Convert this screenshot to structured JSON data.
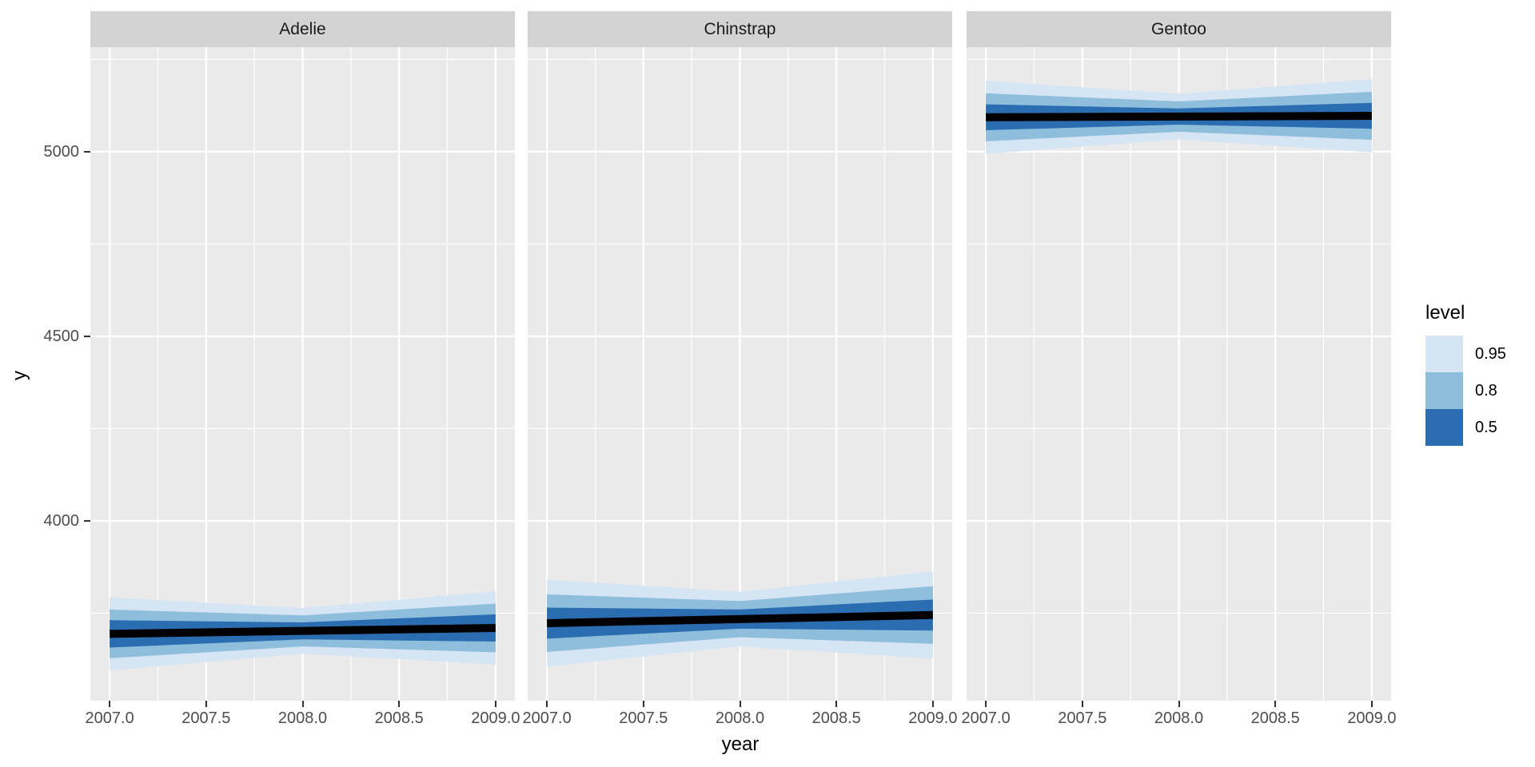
{
  "figure": {
    "background": "#ffffff",
    "panel_bg": "#eaeaea",
    "strip_bg": "#d3d3d3",
    "grid_color": "#ffffff",
    "tick_color": "#333333",
    "tick_label_color": "#4d4d4d",
    "median_color": "#000000"
  },
  "chart_data": {
    "type": "area",
    "subtype": "faceted-fan-chart",
    "title": "",
    "xlabel": "year",
    "ylabel": "y",
    "facets": [
      "Adelie",
      "Chinstrap",
      "Gentoo"
    ],
    "x": [
      2007,
      2008,
      2009
    ],
    "x_ticks": [
      2007.0,
      2007.5,
      2008.0,
      2008.5,
      2009.0
    ],
    "x_tick_labels": [
      "2007.0",
      "2007.5",
      "2008.0",
      "2008.5",
      "2009.0"
    ],
    "x_minor_ticks": [
      2007.25,
      2007.75,
      2008.25,
      2008.75
    ],
    "y_ticks": [
      4000,
      4500,
      5000
    ],
    "y_tick_labels": [
      "4000",
      "4500",
      "5000"
    ],
    "y_minor_ticks": [
      3750,
      4250,
      4750,
      5250
    ],
    "xlim": [
      2006.9,
      2009.1
    ],
    "ylim": [
      3513,
      5283
    ],
    "grid": true,
    "legend": {
      "title": "level",
      "position": "right",
      "entries": [
        {
          "label": "0.95",
          "color": "#d6e5f3"
        },
        {
          "label": "0.8",
          "color": "#8ebedb"
        },
        {
          "label": "0.5",
          "color": "#2a6db1"
        }
      ]
    },
    "series": [
      {
        "facet": "Adelie",
        "median": [
          3694,
          3702,
          3710
        ],
        "bands": [
          {
            "level": "0.95",
            "lower": [
              3595,
              3640,
              3611
            ],
            "upper": [
              3793,
              3764,
              3809
            ]
          },
          {
            "level": "0.8",
            "lower": [
              3628,
              3660,
              3644
            ],
            "upper": [
              3760,
              3744,
              3776
            ]
          },
          {
            "level": "0.5",
            "lower": [
              3657,
              3679,
              3673
            ],
            "upper": [
              3731,
              3725,
              3747
            ]
          }
        ]
      },
      {
        "facet": "Chinstrap",
        "median": [
          3723,
          3734,
          3745
        ],
        "bands": [
          {
            "level": "0.95",
            "lower": [
              3605,
              3660,
              3627
            ],
            "upper": [
              3841,
              3808,
              3863
            ]
          },
          {
            "level": "0.8",
            "lower": [
              3645,
              3685,
              3667
            ],
            "upper": [
              3801,
              3783,
              3823
            ]
          },
          {
            "level": "0.5",
            "lower": [
              3681,
              3708,
              3703
            ],
            "upper": [
              3765,
              3760,
              3787
            ]
          }
        ]
      },
      {
        "facet": "Gentoo",
        "median": [
          5093,
          5095,
          5097
        ],
        "bands": [
          {
            "level": "0.95",
            "lower": [
              4994,
              5033,
              4998
            ],
            "upper": [
              5192,
              5157,
              5196
            ]
          },
          {
            "level": "0.8",
            "lower": [
              5028,
              5054,
              5032
            ],
            "upper": [
              5158,
              5136,
              5162
            ]
          },
          {
            "level": "0.5",
            "lower": [
              5058,
              5073,
              5062
            ],
            "upper": [
              5128,
              5117,
              5132
            ]
          }
        ]
      }
    ]
  }
}
